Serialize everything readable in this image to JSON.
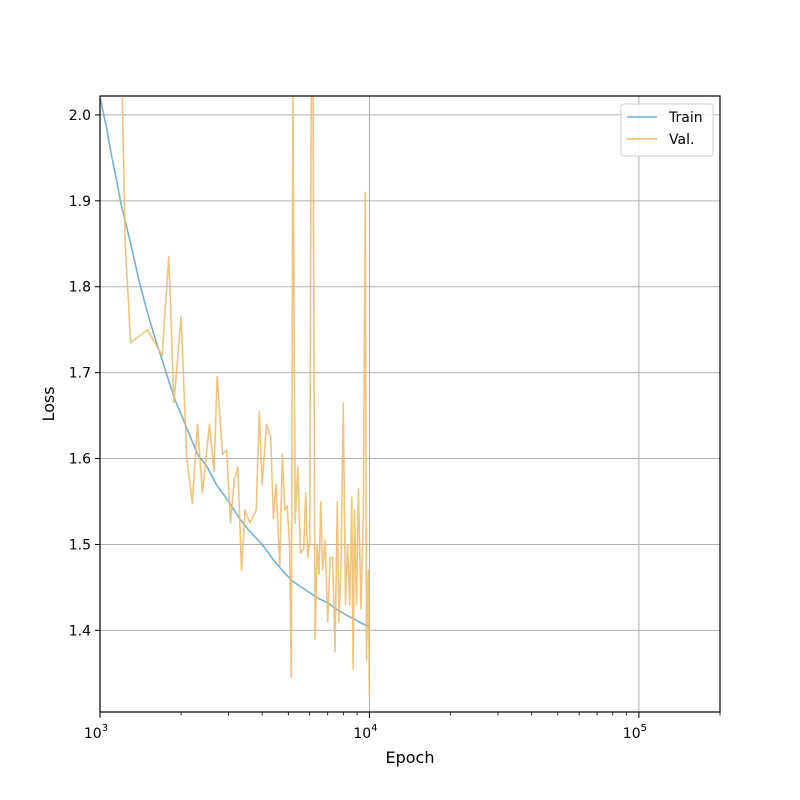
{
  "chart_data": {
    "type": "line",
    "title": "",
    "xlabel": "Epoch",
    "ylabel": "Loss",
    "xscale": "log",
    "xlim": [
      1000,
      200000
    ],
    "ylim": [
      1.305,
      2.022
    ],
    "grid": true,
    "legend_position": "top-right",
    "x_ticks": [
      {
        "value": 1000,
        "base": "10",
        "exp": "3"
      },
      {
        "value": 10000,
        "base": "10",
        "exp": "4"
      },
      {
        "value": 100000,
        "base": "10",
        "exp": "5"
      }
    ],
    "y_ticks": [
      {
        "value": 1.4,
        "label": "1.4"
      },
      {
        "value": 1.5,
        "label": "1.5"
      },
      {
        "value": 1.6,
        "label": "1.6"
      },
      {
        "value": 1.7,
        "label": "1.7"
      },
      {
        "value": 1.8,
        "label": "1.8"
      },
      {
        "value": 1.9,
        "label": "1.9"
      },
      {
        "value": 2.0,
        "label": "2.0"
      }
    ],
    "series": [
      {
        "name": "Train",
        "color": "#6baed6",
        "points": [
          [
            1000,
            2.02
          ],
          [
            1050,
            1.99
          ],
          [
            1100,
            1.955
          ],
          [
            1150,
            1.925
          ],
          [
            1200,
            1.895
          ],
          [
            1300,
            1.85
          ],
          [
            1400,
            1.805
          ],
          [
            1500,
            1.77
          ],
          [
            1600,
            1.74
          ],
          [
            1700,
            1.715
          ],
          [
            1800,
            1.69
          ],
          [
            1900,
            1.668
          ],
          [
            2000,
            1.652
          ],
          [
            2100,
            1.635
          ],
          [
            2200,
            1.62
          ],
          [
            2300,
            1.605
          ],
          [
            2500,
            1.59
          ],
          [
            2700,
            1.57
          ],
          [
            3000,
            1.55
          ],
          [
            3300,
            1.53
          ],
          [
            3600,
            1.515
          ],
          [
            4000,
            1.5
          ],
          [
            4400,
            1.482
          ],
          [
            4800,
            1.468
          ],
          [
            5200,
            1.457
          ],
          [
            5800,
            1.447
          ],
          [
            6400,
            1.438
          ],
          [
            7000,
            1.432
          ],
          [
            7600,
            1.424
          ],
          [
            8200,
            1.418
          ],
          [
            8800,
            1.413
          ],
          [
            9400,
            1.408
          ],
          [
            10000,
            1.404
          ]
        ]
      },
      {
        "name": "Val.",
        "color": "#f0b866",
        "points": [
          [
            1210,
            2.02
          ],
          [
            1240,
            1.85
          ],
          [
            1300,
            1.735
          ],
          [
            1500,
            1.75
          ],
          [
            1700,
            1.72
          ],
          [
            1800,
            1.835
          ],
          [
            1880,
            1.665
          ],
          [
            2000,
            1.765
          ],
          [
            2100,
            1.6
          ],
          [
            2200,
            1.548
          ],
          [
            2300,
            1.64
          ],
          [
            2400,
            1.56
          ],
          [
            2550,
            1.64
          ],
          [
            2650,
            1.585
          ],
          [
            2720,
            1.695
          ],
          [
            2850,
            1.605
          ],
          [
            2950,
            1.61
          ],
          [
            3050,
            1.525
          ],
          [
            3150,
            1.575
          ],
          [
            3250,
            1.59
          ],
          [
            3350,
            1.47
          ],
          [
            3450,
            1.54
          ],
          [
            3600,
            1.525
          ],
          [
            3800,
            1.54
          ],
          [
            3900,
            1.655
          ],
          [
            4000,
            1.57
          ],
          [
            4150,
            1.64
          ],
          [
            4300,
            1.625
          ],
          [
            4400,
            1.53
          ],
          [
            4500,
            1.57
          ],
          [
            4650,
            1.475
          ],
          [
            4750,
            1.605
          ],
          [
            4850,
            1.54
          ],
          [
            4950,
            1.545
          ],
          [
            5050,
            1.5
          ],
          [
            5130,
            1.345
          ],
          [
            5200,
            2.022
          ],
          [
            5300,
            1.525
          ],
          [
            5420,
            1.59
          ],
          [
            5550,
            1.49
          ],
          [
            5700,
            1.495
          ],
          [
            5800,
            1.56
          ],
          [
            5900,
            1.485
          ],
          [
            6000,
            1.505
          ],
          [
            6080,
            2.022
          ],
          [
            6180,
            2.022
          ],
          [
            6280,
            1.39
          ],
          [
            6400,
            1.5
          ],
          [
            6500,
            1.465
          ],
          [
            6600,
            1.55
          ],
          [
            6700,
            1.47
          ],
          [
            6850,
            1.505
          ],
          [
            7000,
            1.41
          ],
          [
            7150,
            1.485
          ],
          [
            7300,
            1.485
          ],
          [
            7450,
            1.375
          ],
          [
            7600,
            1.55
          ],
          [
            7700,
            1.41
          ],
          [
            7850,
            1.48
          ],
          [
            8000,
            1.665
          ],
          [
            8150,
            1.43
          ],
          [
            8300,
            1.5
          ],
          [
            8450,
            1.43
          ],
          [
            8600,
            1.555
          ],
          [
            8700,
            1.355
          ],
          [
            8800,
            1.54
          ],
          [
            8950,
            1.43
          ],
          [
            9100,
            1.565
          ],
          [
            9300,
            1.425
          ],
          [
            9500,
            1.54
          ],
          [
            9650,
            1.91
          ],
          [
            9750,
            1.365
          ],
          [
            9900,
            1.47
          ],
          [
            10000,
            1.325
          ]
        ]
      }
    ]
  }
}
